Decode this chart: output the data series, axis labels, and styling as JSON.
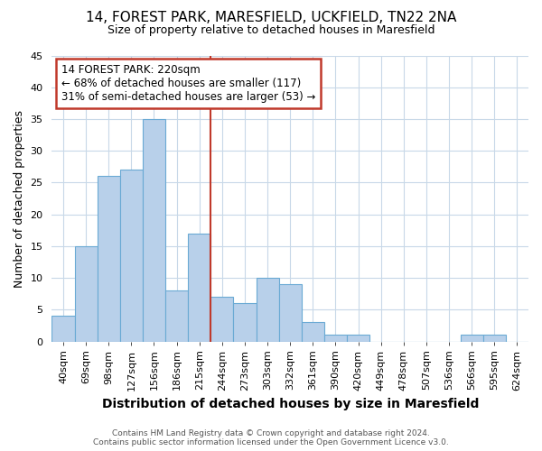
{
  "title_line1": "14, FOREST PARK, MARESFIELD, UCKFIELD, TN22 2NA",
  "title_line2": "Size of property relative to detached houses in Maresfield",
  "xlabel": "Distribution of detached houses by size in Maresfield",
  "ylabel": "Number of detached properties",
  "footnote1": "Contains HM Land Registry data © Crown copyright and database right 2024.",
  "footnote2": "Contains public sector information licensed under the Open Government Licence v3.0.",
  "annotation_line1": "14 FOREST PARK: 220sqm",
  "annotation_line2": "← 68% of detached houses are smaller (117)",
  "annotation_line3": "31% of semi-detached houses are larger (53) →",
  "bar_labels": [
    "40sqm",
    "69sqm",
    "98sqm",
    "127sqm",
    "156sqm",
    "186sqm",
    "215sqm",
    "244sqm",
    "273sqm",
    "303sqm",
    "332sqm",
    "361sqm",
    "390sqm",
    "420sqm",
    "449sqm",
    "478sqm",
    "507sqm",
    "536sqm",
    "566sqm",
    "595sqm",
    "624sqm"
  ],
  "bar_values": [
    4,
    15,
    26,
    27,
    35,
    8,
    17,
    7,
    6,
    10,
    9,
    3,
    1,
    1,
    0,
    0,
    0,
    0,
    1,
    1,
    0
  ],
  "bar_color": "#b8d0ea",
  "bar_edge_color": "#6aaad4",
  "vline_x": 6.5,
  "vline_color": "#c0392b",
  "ylim": [
    0,
    45
  ],
  "yticks": [
    0,
    5,
    10,
    15,
    20,
    25,
    30,
    35,
    40,
    45
  ],
  "annotation_box_color": "#c0392b",
  "background_color": "#ffffff",
  "grid_color": "#c8d8e8",
  "title1_fontsize": 11,
  "title2_fontsize": 9,
  "xlabel_fontsize": 10,
  "ylabel_fontsize": 9,
  "tick_fontsize": 8,
  "ann_fontsize": 8.5,
  "footnote_fontsize": 6.5
}
